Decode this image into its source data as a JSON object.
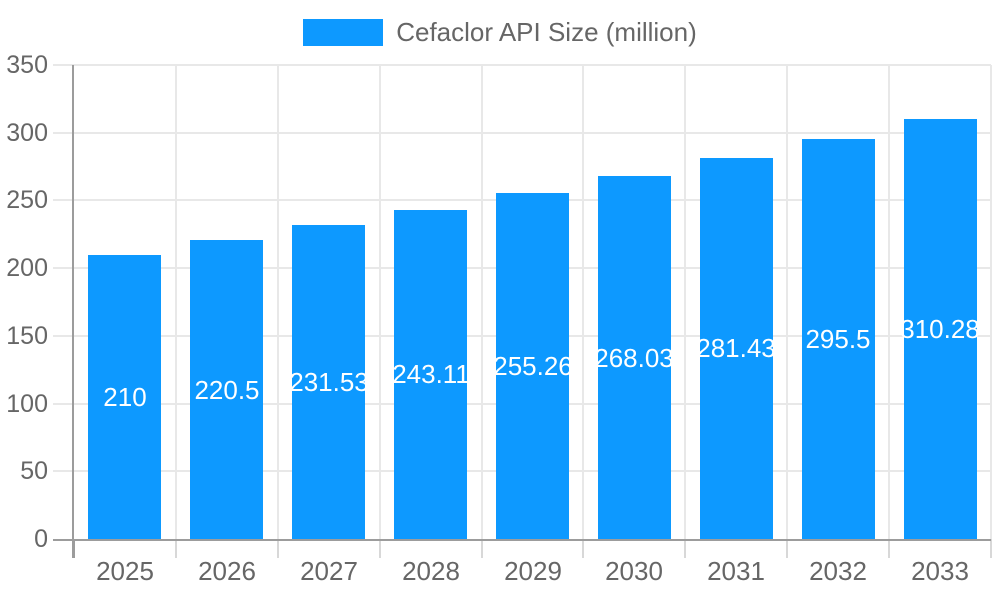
{
  "chart": {
    "legend": {
      "label": "Cefaclor API Size (million)"
    }
  },
  "chart_data": {
    "type": "bar",
    "title": "Cefaclor API Size (million)",
    "categories": [
      "2025",
      "2026",
      "2027",
      "2028",
      "2029",
      "2030",
      "2031",
      "2032",
      "2033"
    ],
    "values": [
      210,
      220.5,
      231.53,
      243.11,
      255.26,
      268.03,
      281.43,
      295.5,
      310.28
    ],
    "bar_labels": [
      "210",
      "220.5",
      "231.53",
      "243.11",
      "255.26",
      "268.03",
      "281.43",
      "295.5",
      "310.28"
    ],
    "xlabel": "",
    "ylabel": "",
    "ylim": [
      0,
      350
    ],
    "yticks": [
      0,
      50,
      100,
      150,
      200,
      250,
      300,
      350
    ],
    "grid": "on",
    "legend_position": "top",
    "colors": {
      "bar": "#0D99FF",
      "bar_label_text": "#FFFFFF",
      "grid": "#E8E8E8",
      "axis": "#9C9C9C",
      "x_tick": "#D8D8D8",
      "text": "#666666"
    }
  }
}
